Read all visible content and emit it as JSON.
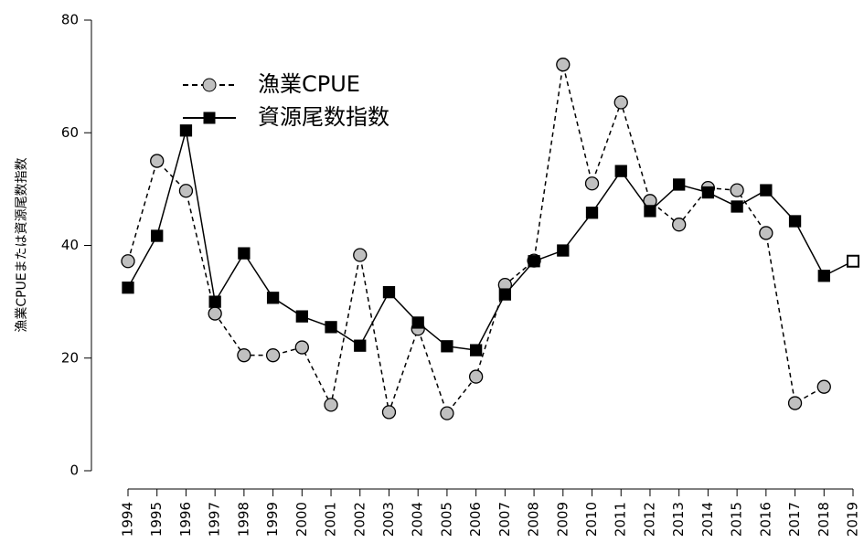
{
  "chart_data": {
    "type": "line",
    "ylabel": "漁業CPUEまたは資源尾数指数",
    "x": [
      1994,
      1995,
      1996,
      1997,
      1998,
      1999,
      2000,
      2001,
      2002,
      2003,
      2004,
      2005,
      2006,
      2007,
      2008,
      2009,
      2010,
      2011,
      2012,
      2013,
      2014,
      2015,
      2016,
      2017,
      2018,
      2019
    ],
    "series": [
      {
        "name": "漁業CPUE",
        "color": "#c0c0c0",
        "line_style": "dashed",
        "marker": "circle",
        "values": [
          37.2,
          55.0,
          49.7,
          27.9,
          20.5,
          20.5,
          21.9,
          11.7,
          38.3,
          10.4,
          25.2,
          10.2,
          16.7,
          33.0,
          37.3,
          72.1,
          51.0,
          65.4,
          47.9,
          43.7,
          50.2,
          49.8,
          42.2,
          12.0,
          14.9,
          null
        ]
      },
      {
        "name": "資源尾数指数",
        "color": "#000000",
        "line_style": "solid",
        "marker": "square",
        "values": [
          32.5,
          41.7,
          60.4,
          30.0,
          38.6,
          30.7,
          27.4,
          25.5,
          22.2,
          31.7,
          26.3,
          22.1,
          21.4,
          31.3,
          37.2,
          39.1,
          45.8,
          53.2,
          46.1,
          50.8,
          49.4,
          46.9,
          49.8,
          44.3,
          34.6,
          37.2
        ]
      }
    ],
    "xlim": [
      1994,
      2019
    ],
    "xticks": [
      1994,
      1995,
      1996,
      1997,
      1998,
      1999,
      2000,
      2001,
      2002,
      2003,
      2004,
      2005,
      2006,
      2007,
      2008,
      2009,
      2010,
      2011,
      2012,
      2013,
      2014,
      2015,
      2016,
      2017,
      2018,
      2019
    ],
    "ylim": [
      0,
      80
    ],
    "yticks": [
      0,
      20,
      40,
      60,
      80
    ],
    "legend": "top-left"
  }
}
